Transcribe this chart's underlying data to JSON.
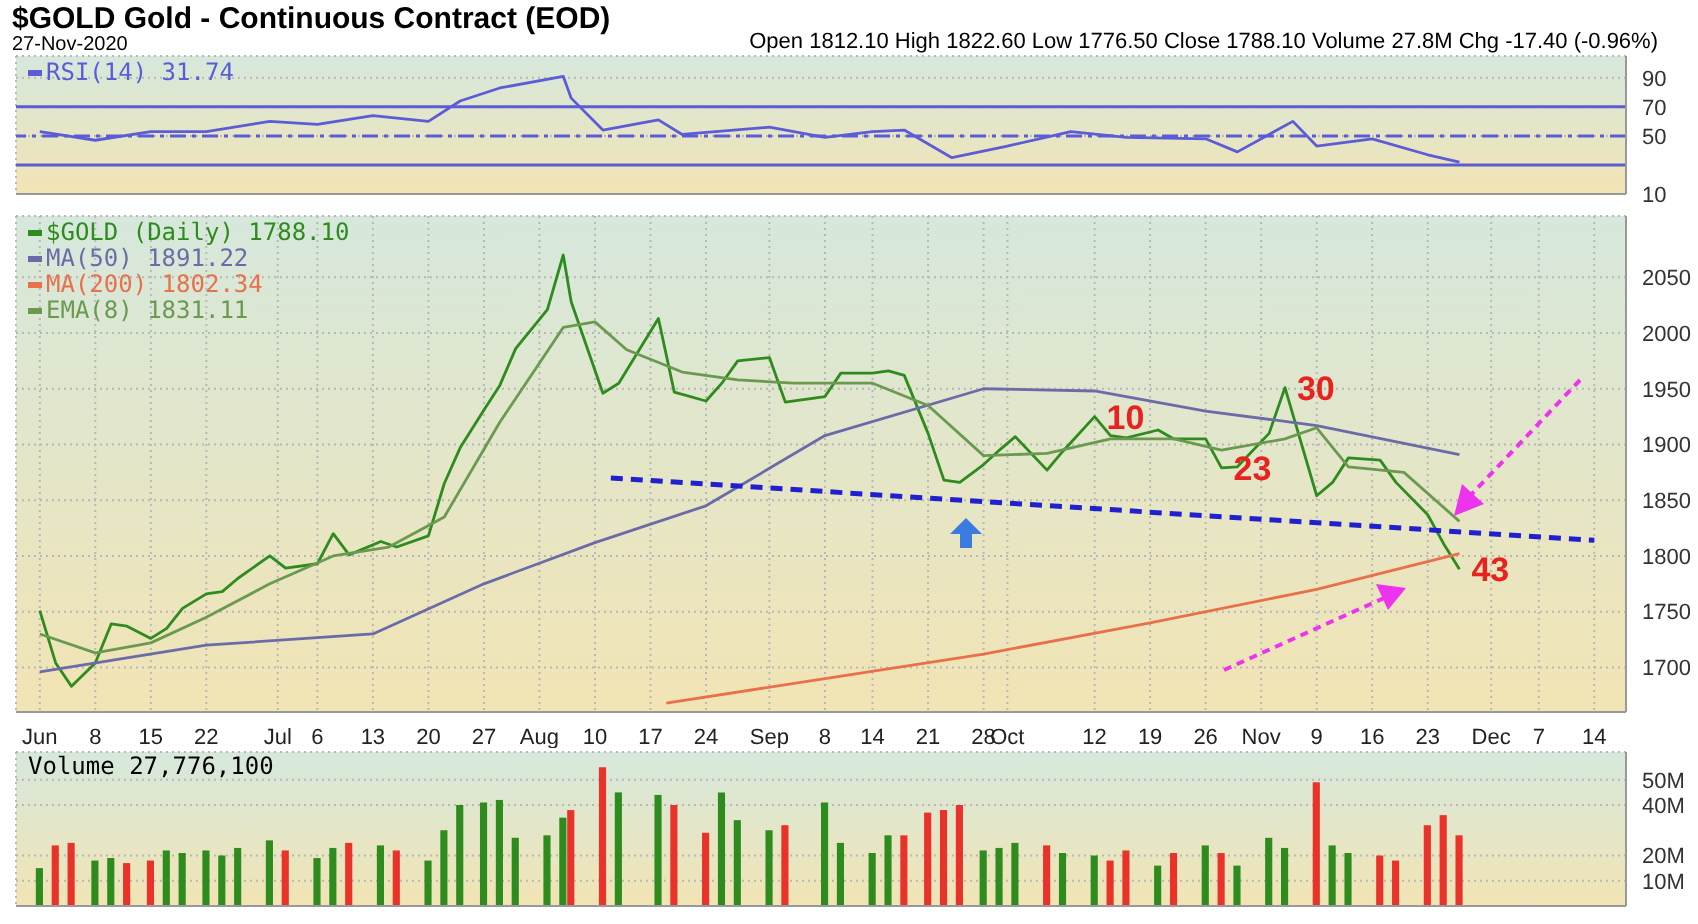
{
  "chart_data": [
    {
      "type": "line",
      "title": "$GOLD Gold - Continuous Contract (EOD)",
      "subtitle": "27-Nov-2020",
      "annotations": [
        "Open 1812.10 High 1822.60 Low 1776.50 Close 1788.10 Volume 27.8M Chg -17.40 (-0.96%)"
      ],
      "x": [
        "2020-06-01",
        "2020-06-08",
        "2020-06-15",
        "2020-06-22",
        "2020-06-30",
        "2020-07-06",
        "2020-07-13",
        "2020-07-20",
        "2020-07-24",
        "2020-07-29",
        "2020-08-06",
        "2020-08-07",
        "2020-08-11",
        "2020-08-18",
        "2020-08-21",
        "2020-09-01",
        "2020-09-08",
        "2020-09-14",
        "2020-09-18",
        "2020-09-24",
        "2020-10-01",
        "2020-10-09",
        "2020-10-16",
        "2020-10-26",
        "2020-10-30",
        "2020-11-06",
        "2020-11-09",
        "2020-11-16",
        "2020-11-23",
        "2020-11-27"
      ],
      "series": [
        {
          "name": "RSI(14) 31.74",
          "color": "#5c5cd6",
          "values": [
            53,
            47,
            53,
            53,
            60,
            58,
            64,
            60,
            74,
            83,
            91,
            76,
            54,
            61,
            51,
            56,
            49,
            53,
            54,
            35,
            43,
            53,
            49,
            48,
            39,
            60,
            43,
            48,
            37,
            32
          ]
        }
      ],
      "xlim": [
        "2020-05-29",
        "2020-12-18"
      ],
      "ylim": [
        10,
        105
      ],
      "yticks": [
        10,
        50,
        70,
        90
      ],
      "ref_lines": [
        {
          "axis": "y",
          "value": 70,
          "color": "#5c5cd6",
          "line_style": "solid"
        },
        {
          "axis": "y",
          "value": 50,
          "color": "#5c5cd6",
          "line_style": "dashed"
        },
        {
          "axis": "y",
          "value": 30,
          "color": "#5c5cd6",
          "line_style": "solid"
        }
      ],
      "grid": true,
      "legend": "top left",
      "marker": "none",
      "tick_labels": "y"
    },
    {
      "type": "line",
      "x": [
        "2020-06-01",
        "2020-06-03",
        "2020-06-05",
        "2020-06-08",
        "2020-06-10",
        "2020-06-12",
        "2020-06-15",
        "2020-06-17",
        "2020-06-19",
        "2020-06-22",
        "2020-06-24",
        "2020-06-26",
        "2020-06-30",
        "2020-07-02",
        "2020-07-06",
        "2020-07-08",
        "2020-07-10",
        "2020-07-14",
        "2020-07-16",
        "2020-07-20",
        "2020-07-22",
        "2020-07-24",
        "2020-07-27",
        "2020-07-29",
        "2020-07-31",
        "2020-08-04",
        "2020-08-06",
        "2020-08-07",
        "2020-08-11",
        "2020-08-13",
        "2020-08-18",
        "2020-08-20",
        "2020-08-24",
        "2020-08-26",
        "2020-08-28",
        "2020-09-01",
        "2020-09-03",
        "2020-09-08",
        "2020-09-10",
        "2020-09-14",
        "2020-09-16",
        "2020-09-18",
        "2020-09-21",
        "2020-09-23",
        "2020-09-25",
        "2020-09-28",
        "2020-09-30",
        "2020-10-02",
        "2020-10-06",
        "2020-10-08",
        "2020-10-12",
        "2020-10-14",
        "2020-10-16",
        "2020-10-20",
        "2020-10-22",
        "2020-10-26",
        "2020-10-28",
        "2020-10-30",
        "2020-11-03",
        "2020-11-05",
        "2020-11-09",
        "2020-11-11",
        "2020-11-13",
        "2020-11-17",
        "2020-11-19",
        "2020-11-23",
        "2020-11-25",
        "2020-11-27"
      ],
      "series": [
        {
          "name": "$GOLD (Daily) 1788.10",
          "color": "#2e8b1e",
          "values": [
            1751,
            1704,
            1683,
            1704,
            1739,
            1737,
            1726,
            1735,
            1753,
            1766,
            1768,
            1780,
            1800,
            1789,
            1793,
            1820,
            1801,
            1813,
            1808,
            1818,
            1865,
            1897,
            1931,
            1953,
            1986,
            2021,
            2070,
            2028,
            1946,
            1955,
            2013,
            1947,
            1939,
            1955,
            1975,
            1978,
            1938,
            1943,
            1964,
            1964,
            1966,
            1962,
            1910,
            1868,
            1866,
            1882,
            1895,
            1907,
            1877,
            1894,
            1925,
            1908,
            1906,
            1913,
            1905,
            1905,
            1879,
            1880,
            1910,
            1951,
            1854,
            1866,
            1888,
            1886,
            1866,
            1837,
            1811,
            1788
          ]
        },
        {
          "name": "MA(50) 1891.22",
          "color": "#6b6ba8",
          "x": [
            "2020-06-01",
            "2020-06-22",
            "2020-07-13",
            "2020-07-27",
            "2020-08-10",
            "2020-08-24",
            "2020-09-08",
            "2020-09-28",
            "2020-10-12",
            "2020-10-26",
            "2020-11-09",
            "2020-11-27"
          ],
          "values": [
            1696,
            1720,
            1730,
            1775,
            1812,
            1845,
            1908,
            1950,
            1948,
            1930,
            1917,
            1891
          ]
        },
        {
          "name": "MA(200) 1802.34",
          "color": "#e8704a",
          "x": [
            "2020-08-19",
            "2020-09-08",
            "2020-09-28",
            "2020-10-19",
            "2020-11-09",
            "2020-11-27"
          ],
          "values": [
            1668,
            1690,
            1712,
            1740,
            1770,
            1802
          ]
        },
        {
          "name": "EMA(8) 1831.11",
          "color": "#6a9a50",
          "x": [
            "2020-06-01",
            "2020-06-08",
            "2020-06-15",
            "2020-06-22",
            "2020-06-30",
            "2020-07-08",
            "2020-07-15",
            "2020-07-22",
            "2020-07-29",
            "2020-08-06",
            "2020-08-10",
            "2020-08-14",
            "2020-08-21",
            "2020-08-28",
            "2020-09-04",
            "2020-09-14",
            "2020-09-21",
            "2020-09-28",
            "2020-10-06",
            "2020-10-14",
            "2020-10-22",
            "2020-10-28",
            "2020-11-05",
            "2020-11-09",
            "2020-11-13",
            "2020-11-20",
            "2020-11-27"
          ],
          "values": [
            1730,
            1713,
            1722,
            1745,
            1775,
            1800,
            1808,
            1835,
            1920,
            2005,
            2010,
            1985,
            1965,
            1958,
            1955,
            1955,
            1935,
            1890,
            1892,
            1905,
            1905,
            1895,
            1905,
            1915,
            1880,
            1875,
            1831
          ]
        },
        {
          "color": "#2020d0",
          "line_style": "dashed",
          "x": [
            "2020-08-12",
            "2020-12-14"
          ],
          "values": [
            1870,
            1814
          ]
        }
      ],
      "annotations": [
        {
          "text": "10",
          "x": "2020-10-12",
          "y": 1925
        },
        {
          "text": "30",
          "x": "2020-11-05",
          "y": 1951
        },
        {
          "text": "23",
          "x": "2020-10-28",
          "y": 1879
        },
        {
          "text": "43",
          "x": "2020-11-27",
          "y": 1788
        }
      ],
      "xlim": [
        "2020-05-29",
        "2020-12-18"
      ],
      "xticks": [
        {
          "value": "2020-06-01",
          "label": "Jun"
        },
        {
          "value": "2020-06-08",
          "label": "8"
        },
        {
          "value": "2020-06-15",
          "label": "15"
        },
        {
          "value": "2020-06-22",
          "label": "22"
        },
        {
          "value": "2020-07-01",
          "label": "Jul"
        },
        {
          "value": "2020-07-06",
          "label": "6"
        },
        {
          "value": "2020-07-13",
          "label": "13"
        },
        {
          "value": "2020-07-20",
          "label": "20"
        },
        {
          "value": "2020-07-27",
          "label": "27"
        },
        {
          "value": "2020-08-03",
          "label": "Aug"
        },
        {
          "value": "2020-08-10",
          "label": "10"
        },
        {
          "value": "2020-08-17",
          "label": "17"
        },
        {
          "value": "2020-08-24",
          "label": "24"
        },
        {
          "value": "2020-09-01",
          "label": "Sep"
        },
        {
          "value": "2020-09-08",
          "label": "8"
        },
        {
          "value": "2020-09-14",
          "label": "14"
        },
        {
          "value": "2020-09-21",
          "label": "21"
        },
        {
          "value": "2020-09-28",
          "label": "28"
        },
        {
          "value": "2020-10-01",
          "label": "Oct"
        },
        {
          "value": "2020-10-12",
          "label": "12"
        },
        {
          "value": "2020-10-19",
          "label": "19"
        },
        {
          "value": "2020-10-26",
          "label": "26"
        },
        {
          "value": "2020-11-02",
          "label": "Nov"
        },
        {
          "value": "2020-11-09",
          "label": "9"
        },
        {
          "value": "2020-11-16",
          "label": "16"
        },
        {
          "value": "2020-11-23",
          "label": "23"
        },
        {
          "value": "2020-12-01",
          "label": "Dec"
        },
        {
          "value": "2020-12-07",
          "label": "7"
        },
        {
          "value": "2020-12-14",
          "label": "14"
        }
      ],
      "ylim": [
        1660,
        2105
      ],
      "yticks": [
        1700,
        1750,
        1800,
        1850,
        1900,
        1950,
        2000,
        2050
      ],
      "grid": true,
      "legend": "top left",
      "marker": "none"
    },
    {
      "type": "bar",
      "x": [
        "2020-06-01",
        "2020-06-03",
        "2020-06-05",
        "2020-06-08",
        "2020-06-10",
        "2020-06-12",
        "2020-06-15",
        "2020-06-17",
        "2020-06-19",
        "2020-06-22",
        "2020-06-24",
        "2020-06-26",
        "2020-06-30",
        "2020-07-02",
        "2020-07-06",
        "2020-07-08",
        "2020-07-10",
        "2020-07-14",
        "2020-07-16",
        "2020-07-20",
        "2020-07-22",
        "2020-07-24",
        "2020-07-27",
        "2020-07-29",
        "2020-07-31",
        "2020-08-04",
        "2020-08-06",
        "2020-08-07",
        "2020-08-11",
        "2020-08-13",
        "2020-08-18",
        "2020-08-20",
        "2020-08-24",
        "2020-08-26",
        "2020-08-28",
        "2020-09-01",
        "2020-09-03",
        "2020-09-08",
        "2020-09-10",
        "2020-09-14",
        "2020-09-16",
        "2020-09-18",
        "2020-09-21",
        "2020-09-23",
        "2020-09-25",
        "2020-09-28",
        "2020-09-30",
        "2020-10-02",
        "2020-10-06",
        "2020-10-08",
        "2020-10-12",
        "2020-10-14",
        "2020-10-16",
        "2020-10-20",
        "2020-10-22",
        "2020-10-26",
        "2020-10-28",
        "2020-10-30",
        "2020-11-03",
        "2020-11-05",
        "2020-11-09",
        "2020-11-11",
        "2020-11-13",
        "2020-11-17",
        "2020-11-19",
        "2020-11-23",
        "2020-11-25",
        "2020-11-27"
      ],
      "series": [
        {
          "name": "Volume 27,776,100",
          "values": [
            15,
            24,
            25,
            18,
            19,
            17,
            18,
            22,
            21,
            22,
            20,
            23,
            26,
            22,
            19,
            23,
            25,
            24,
            22,
            18,
            30,
            40,
            41,
            42,
            27,
            28,
            35,
            38,
            55,
            45,
            44,
            40,
            29,
            45,
            34,
            30,
            32,
            41,
            25,
            21,
            28,
            28,
            37,
            38,
            40,
            22,
            23,
            25,
            24,
            21,
            20,
            18,
            22,
            16,
            21,
            24,
            21,
            16,
            27,
            23,
            49,
            24,
            21,
            20,
            18,
            32,
            36,
            28
          ],
          "colors": [
            "#2e8b1e",
            "#e8322a",
            "#e8322a",
            "#2e8b1e",
            "#2e8b1e",
            "#e8322a",
            "#e8322a",
            "#2e8b1e",
            "#2e8b1e",
            "#2e8b1e",
            "#2e8b1e",
            "#2e8b1e",
            "#2e8b1e",
            "#e8322a",
            "#2e8b1e",
            "#2e8b1e",
            "#e8322a",
            "#2e8b1e",
            "#e8322a",
            "#2e8b1e",
            "#2e8b1e",
            "#2e8b1e",
            "#2e8b1e",
            "#2e8b1e",
            "#2e8b1e",
            "#2e8b1e",
            "#2e8b1e",
            "#e8322a",
            "#e8322a",
            "#2e8b1e",
            "#2e8b1e",
            "#e8322a",
            "#e8322a",
            "#2e8b1e",
            "#2e8b1e",
            "#2e8b1e",
            "#e8322a",
            "#2e8b1e",
            "#2e8b1e",
            "#2e8b1e",
            "#2e8b1e",
            "#e8322a",
            "#e8322a",
            "#e8322a",
            "#e8322a",
            "#2e8b1e",
            "#2e8b1e",
            "#2e8b1e",
            "#e8322a",
            "#2e8b1e",
            "#2e8b1e",
            "#e8322a",
            "#e8322a",
            "#2e8b1e",
            "#e8322a",
            "#2e8b1e",
            "#e8322a",
            "#2e8b1e",
            "#2e8b1e",
            "#2e8b1e",
            "#e8322a",
            "#2e8b1e",
            "#2e8b1e",
            "#e8322a",
            "#e8322a",
            "#e8322a",
            "#e8322a",
            "#e8322a"
          ]
        }
      ],
      "xlim": [
        "2020-05-29",
        "2020-12-18"
      ],
      "ylim": [
        0,
        61
      ],
      "yticks": [
        {
          "value": 10,
          "label": "10M"
        },
        {
          "value": 20,
          "label": "20M"
        },
        {
          "value": 40,
          "label": "40M"
        },
        {
          "value": 50,
          "label": "50M"
        }
      ],
      "grid": true,
      "tick_labels": "y"
    }
  ]
}
